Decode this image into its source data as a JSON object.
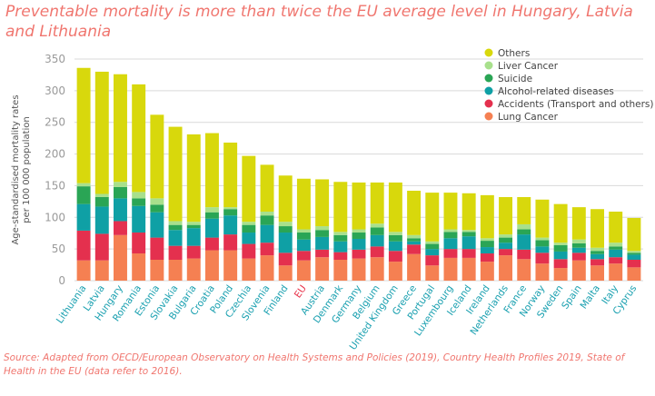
{
  "title": "Preventable mortality is more than twice the EU average level in Hungary, Latvia and Lithuania",
  "source": "Source: Adapted from OECD/European Observatory on Health Systems and Policies (2019), Country Health Profiles 2019, State of Health in the EU (data refer to 2016).",
  "colors": {
    "Lung Cancer": "#f58052",
    "Accidents (Transport and others)": "#e4304e",
    "Alcohol-related diseases": "#0fa0a5",
    "Suicide": "#2aa555",
    "Liver Cancer": "#a8e08c",
    "Others": "#d8d80c",
    "axis_text": "#9a9a9a",
    "category_text": "#1aa0b0",
    "highlight_text": "#e8334a",
    "gridline": "#d9d9d9"
  },
  "chart_data": {
    "type": "bar",
    "stacked": true,
    "ylabel": "Age-standardised mortality rates per 100 000 population",
    "ylim": [
      0,
      350
    ],
    "yticks": [
      0,
      50,
      100,
      150,
      200,
      250,
      300,
      350
    ],
    "grid": true,
    "legend_position": "top-right",
    "highlight_category": "EU",
    "categories": [
      "Lithuania",
      "Latvia",
      "Hungary",
      "Romania",
      "Estonia",
      "Slovakia",
      "Bulgaria",
      "Croatia",
      "Poland",
      "Czechia",
      "Slovenia",
      "Finland",
      "EU",
      "Austria",
      "Denmark",
      "Germany",
      "Belgium",
      "United Kingdom",
      "Greece",
      "Portugal",
      "Luxembourg",
      "Iceland",
      "Ireland",
      "Netherlands",
      "France",
      "Norway",
      "Sweden",
      "Spain",
      "Malta",
      "Italy",
      "Cyprus"
    ],
    "series": [
      {
        "name": "Lung Cancer",
        "values": [
          32,
          32,
          72,
          43,
          33,
          33,
          35,
          48,
          48,
          35,
          40,
          24,
          32,
          37,
          33,
          35,
          37,
          30,
          42,
          24,
          36,
          36,
          30,
          40,
          34,
          27,
          20,
          32,
          24,
          27,
          21
        ]
      },
      {
        "name": "Accidents (Transport and others)",
        "values": [
          47,
          42,
          22,
          33,
          35,
          22,
          20,
          20,
          25,
          23,
          20,
          20,
          15,
          12,
          12,
          14,
          17,
          17,
          15,
          16,
          14,
          14,
          13,
          10,
          15,
          17,
          14,
          12,
          10,
          10,
          12
        ]
      },
      {
        "name": "Alcohol-related diseases",
        "values": [
          42,
          43,
          36,
          42,
          40,
          25,
          28,
          30,
          30,
          18,
          28,
          32,
          18,
          20,
          17,
          17,
          18,
          15,
          5,
          10,
          17,
          20,
          10,
          10,
          24,
          10,
          12,
          8,
          8,
          12,
          8
        ]
      },
      {
        "name": "Suicide",
        "values": [
          28,
          15,
          18,
          12,
          12,
          8,
          5,
          10,
          10,
          12,
          15,
          10,
          11,
          11,
          10,
          10,
          12,
          10,
          5,
          8,
          10,
          7,
          10,
          8,
          8,
          10,
          10,
          7,
          5,
          5,
          3
        ]
      },
      {
        "name": "Liver Cancer",
        "values": [
          5,
          5,
          8,
          10,
          10,
          6,
          5,
          8,
          3,
          5,
          6,
          7,
          5,
          6,
          5,
          5,
          6,
          5,
          5,
          4,
          4,
          3,
          4,
          5,
          8,
          4,
          4,
          6,
          5,
          6,
          3
        ]
      },
      {
        "name": "Others",
        "values": [
          182,
          193,
          170,
          170,
          132,
          149,
          138,
          117,
          102,
          104,
          74,
          73,
          80,
          74,
          79,
          74,
          65,
          78,
          70,
          77,
          58,
          58,
          68,
          59,
          43,
          60,
          61,
          51,
          61,
          49,
          52
        ]
      }
    ]
  }
}
